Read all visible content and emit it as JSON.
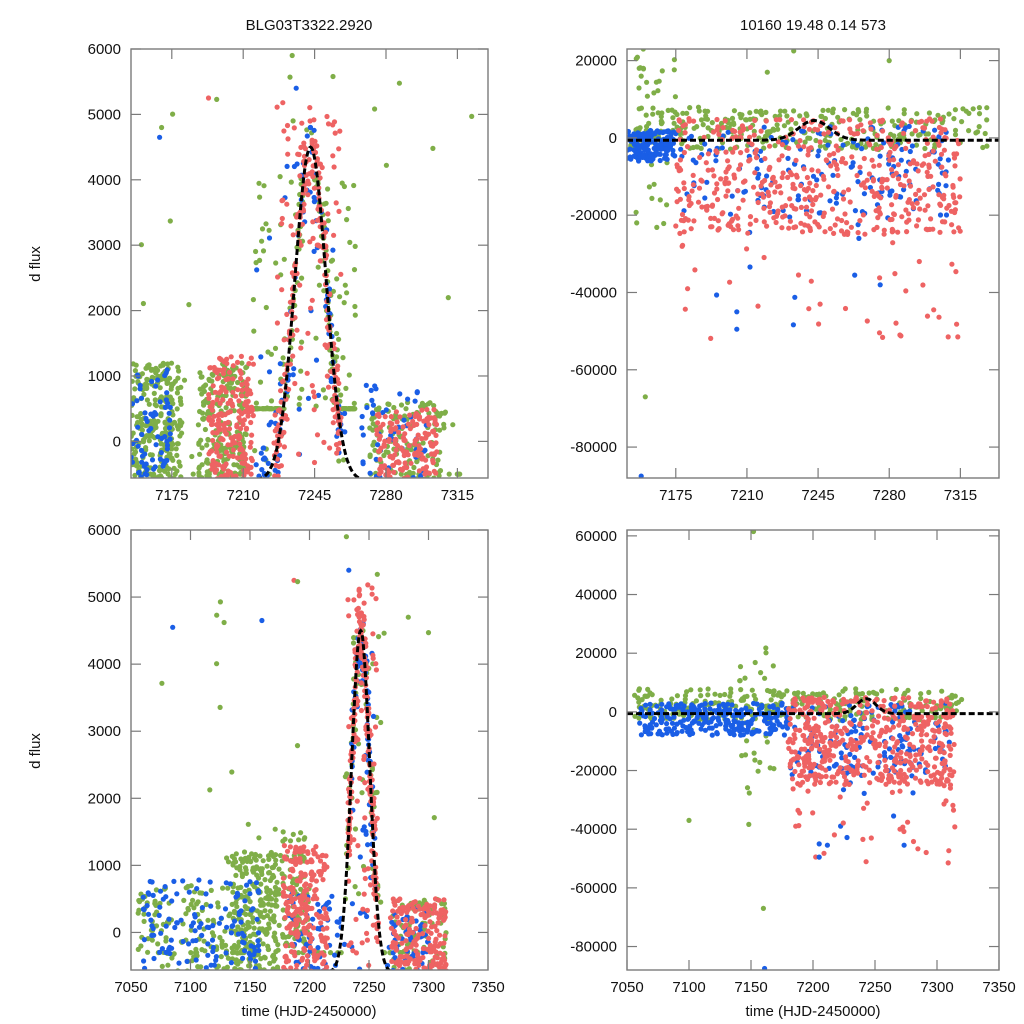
{
  "figure": {
    "title_left": "BLG03T3322.2920",
    "title_right": "10160  19.48  0.14  573",
    "ylabel": "d flux",
    "xlabel": "time (HJD-2450000)"
  },
  "colors": {
    "green": "#7fae48",
    "red": "#ee6363",
    "blue": "#1a5ee6",
    "model": "#000000",
    "frame": "#7a7a7a"
  },
  "chart_data": [
    {
      "id": "top-left",
      "type": "scatter",
      "title": "BLG03T3322.2920",
      "xlabel": "",
      "ylabel": "d flux",
      "xlim": [
        7155,
        7330
      ],
      "ylim": [
        -560,
        6000
      ],
      "xticks": [
        7175,
        7210,
        7245,
        7280,
        7315
      ],
      "yticks": [
        0,
        1000,
        2000,
        3000,
        4000,
        5000,
        6000
      ],
      "grid": false,
      "model": {
        "type": "pspl",
        "t0": 7243,
        "peak": 4500,
        "base": -600,
        "tE": 16
      },
      "series": [
        {
          "name": "green",
          "clusters": [
            {
              "t": [
                7155,
                7180
              ],
              "y": [
                -600,
                1200
              ],
              "n": 260
            },
            {
              "t": [
                7188,
                7212
              ],
              "y": [
                -600,
                1200
              ],
              "n": 200
            },
            {
              "t": [
                7215,
                7240
              ],
              "y": [
                500,
                4200
              ],
              "n": 120
            },
            {
              "t": [
                7245,
                7265
              ],
              "y": [
                500,
                4000
              ],
              "n": 120
            },
            {
              "t": [
                7270,
                7310
              ],
              "y": [
                -600,
                600
              ],
              "n": 120
            },
            {
              "t": [
                7155,
                7320
              ],
              "y": [
                -500,
                5600
              ],
              "n": 70
            }
          ]
        },
        {
          "name": "red",
          "clusters": [
            {
              "t": [
                7193,
                7215
              ],
              "y": [
                -600,
                1300
              ],
              "n": 200
            },
            {
              "t": [
                7225,
                7258
              ],
              "y": [
                -600,
                5200
              ],
              "n": 260
            },
            {
              "t": [
                7275,
                7305
              ],
              "y": [
                -600,
                500
              ],
              "n": 150
            }
          ]
        },
        {
          "name": "blue",
          "clusters": [
            {
              "t": [
                7155,
                7175
              ],
              "y": [
                -600,
                1100
              ],
              "n": 70
            },
            {
              "t": [
                7215,
                7260
              ],
              "y": [
                -600,
                4800
              ],
              "n": 120
            },
            {
              "t": [
                7268,
                7300
              ],
              "y": [
                -600,
                900
              ],
              "n": 50
            }
          ]
        }
      ]
    },
    {
      "id": "top-right",
      "type": "scatter",
      "title": "10160  19.48  0.14  573",
      "xlabel": "",
      "ylabel": "",
      "xlim": [
        7151,
        7334
      ],
      "ylim": [
        -88000,
        23000
      ],
      "xticks": [
        7175,
        7210,
        7245,
        7280,
        7315
      ],
      "yticks": [
        -80000,
        -60000,
        -40000,
        -20000,
        0,
        20000
      ],
      "grid": false,
      "model": {
        "type": "pspl",
        "t0": 7243,
        "peak": 4500,
        "base": -600,
        "tE": 16
      },
      "series": [
        {
          "name": "green",
          "clusters": [
            {
              "t": [
                7151,
                7330
              ],
              "y": [
                -3000,
                8000
              ],
              "n": 300
            },
            {
              "t": [
                7155,
                7175
              ],
              "y": [
                -30000,
                22000
              ],
              "n": 30
            }
          ]
        },
        {
          "name": "red",
          "clusters": [
            {
              "t": [
                7175,
                7315
              ],
              "y": [
                -25000,
                5000
              ],
              "n": 500
            },
            {
              "t": [
                7175,
                7315
              ],
              "y": [
                -52000,
                -20000
              ],
              "n": 40
            }
          ]
        },
        {
          "name": "blue",
          "clusters": [
            {
              "t": [
                7151,
                7175
              ],
              "y": [
                -6000,
                2000
              ],
              "n": 150
            },
            {
              "t": [
                7175,
                7310
              ],
              "y": [
                -20000,
                3000
              ],
              "n": 160
            },
            {
              "t": [
                7190,
                7300
              ],
              "y": [
                -50000,
                -20000
              ],
              "n": 10
            }
          ]
        }
      ]
    },
    {
      "id": "bottom-left",
      "type": "scatter",
      "title": "",
      "xlabel": "time (HJD-2450000)",
      "ylabel": "d flux",
      "xlim": [
        7050,
        7350
      ],
      "ylim": [
        -560,
        6000
      ],
      "xticks": [
        7050,
        7100,
        7150,
        7200,
        7250,
        7300,
        7350
      ],
      "yticks": [
        0,
        1000,
        2000,
        3000,
        4000,
        5000,
        6000
      ],
      "grid": false,
      "model": {
        "type": "pspl",
        "t0": 7243,
        "peak": 4500,
        "base": -600,
        "tE": 16
      },
      "series": [
        {
          "name": "green",
          "clusters": [
            {
              "t": [
                7055,
                7135
              ],
              "y": [
                -600,
                700
              ],
              "n": 120
            },
            {
              "t": [
                7135,
                7175
              ],
              "y": [
                -600,
                1200
              ],
              "n": 260
            },
            {
              "t": [
                7175,
                7200
              ],
              "y": [
                -200,
                1500
              ],
              "n": 90
            },
            {
              "t": [
                7230,
                7260
              ],
              "y": [
                500,
                4500
              ],
              "n": 80
            },
            {
              "t": [
                7270,
                7315
              ],
              "y": [
                -600,
                500
              ],
              "n": 80
            },
            {
              "t": [
                7070,
                7320
              ],
              "y": [
                -300,
                5600
              ],
              "n": 60
            }
          ]
        },
        {
          "name": "red",
          "clusters": [
            {
              "t": [
                7178,
                7215
              ],
              "y": [
                -600,
                1300
              ],
              "n": 220
            },
            {
              "t": [
                7232,
                7258
              ],
              "y": [
                -600,
                5200
              ],
              "n": 240
            },
            {
              "t": [
                7268,
                7315
              ],
              "y": [
                -600,
                500
              ],
              "n": 180
            }
          ]
        },
        {
          "name": "blue",
          "clusters": [
            {
              "t": [
                7060,
                7160
              ],
              "y": [
                -600,
                800
              ],
              "n": 130
            },
            {
              "t": [
                7180,
                7230
              ],
              "y": [
                -600,
                600
              ],
              "n": 60
            },
            {
              "t": [
                7235,
                7255
              ],
              "y": [
                -600,
                4600
              ],
              "n": 80
            },
            {
              "t": [
                7265,
                7300
              ],
              "y": [
                -600,
                400
              ],
              "n": 50
            }
          ]
        }
      ]
    },
    {
      "id": "bottom-right",
      "type": "scatter",
      "title": "",
      "xlabel": "time (HJD-2450000)",
      "ylabel": "",
      "xlim": [
        7050,
        7350
      ],
      "ylim": [
        -88000,
        62000
      ],
      "xticks": [
        7050,
        7100,
        7150,
        7200,
        7250,
        7300,
        7350
      ],
      "yticks": [
        -80000,
        -60000,
        -40000,
        -20000,
        0,
        20000,
        40000,
        60000
      ],
      "grid": false,
      "model": {
        "type": "pspl",
        "t0": 7243,
        "peak": 4500,
        "base": -600,
        "tE": 16
      },
      "series": [
        {
          "name": "green",
          "clusters": [
            {
              "t": [
                7055,
                7320
              ],
              "y": [
                -3000,
                8000
              ],
              "n": 300
            },
            {
              "t": [
                7140,
                7170
              ],
              "y": [
                -40000,
                22000
              ],
              "n": 30
            }
          ]
        },
        {
          "name": "red",
          "clusters": [
            {
              "t": [
                7180,
                7315
              ],
              "y": [
                -25000,
                5000
              ],
              "n": 500
            },
            {
              "t": [
                7180,
                7315
              ],
              "y": [
                -52000,
                -20000
              ],
              "n": 40
            }
          ]
        },
        {
          "name": "blue",
          "clusters": [
            {
              "t": [
                7060,
                7180
              ],
              "y": [
                -8000,
                3000
              ],
              "n": 260
            },
            {
              "t": [
                7180,
                7310
              ],
              "y": [
                -22000,
                3000
              ],
              "n": 140
            },
            {
              "t": [
                7190,
                7300
              ],
              "y": [
                -50000,
                -20000
              ],
              "n": 10
            }
          ]
        }
      ]
    }
  ],
  "notable_points": {
    "top-left": [
      {
        "s": "green",
        "t": 7234,
        "y": 5900
      },
      {
        "s": "red",
        "t": 7193,
        "y": 5250
      },
      {
        "s": "green",
        "t": 7197,
        "y": 5230
      },
      {
        "s": "green",
        "t": 7170,
        "y": 4800
      },
      {
        "s": "blue",
        "t": 7169,
        "y": 4650
      },
      {
        "s": "green",
        "t": 7322,
        "y": 4970
      },
      {
        "s": "green",
        "t": 7303,
        "y": 4480
      },
      {
        "s": "blue",
        "t": 7236,
        "y": 5400
      },
      {
        "s": "green",
        "t": 7254,
        "y": 5580
      }
    ],
    "top-right": [
      {
        "s": "green",
        "t": 7159,
        "y": 23000
      },
      {
        "s": "green",
        "t": 7157,
        "y": 18000
      },
      {
        "s": "green",
        "t": 7159,
        "y": 18000
      },
      {
        "s": "green",
        "t": 7158,
        "y": 16000
      },
      {
        "s": "green",
        "t": 7233,
        "y": 22500
      },
      {
        "s": "green",
        "t": 7280,
        "y": 20000
      },
      {
        "s": "green",
        "t": 7220,
        "y": 17000
      },
      {
        "s": "green",
        "t": 7160,
        "y": -67000
      },
      {
        "s": "blue",
        "t": 7158,
        "y": -87500
      },
      {
        "s": "blue",
        "t": 7205,
        "y": -45000
      },
      {
        "s": "blue",
        "t": 7205,
        "y": -49500
      },
      {
        "s": "blue",
        "t": 7263,
        "y": -35500
      },
      {
        "s": "red",
        "t": 7309,
        "y": -51500
      },
      {
        "s": "red",
        "t": 7246,
        "y": -43000
      }
    ],
    "bottom-left": [
      {
        "s": "green",
        "t": 7231,
        "y": 5900
      },
      {
        "s": "blue",
        "t": 7085,
        "y": 4550
      },
      {
        "s": "red",
        "t": 7187,
        "y": 5250
      },
      {
        "s": "green",
        "t": 7190,
        "y": 5230
      },
      {
        "s": "green",
        "t": 7300,
        "y": 4470
      },
      {
        "s": "green",
        "t": 7283,
        "y": 4700
      },
      {
        "s": "blue",
        "t": 7160,
        "y": 4650
      },
      {
        "s": "green",
        "t": 7122,
        "y": 4730
      },
      {
        "s": "blue",
        "t": 7233,
        "y": 5400
      }
    ],
    "bottom-right": [
      {
        "s": "green",
        "t": 7152,
        "y": 61500
      },
      {
        "s": "blue",
        "t": 7161,
        "y": -87500
      },
      {
        "s": "green",
        "t": 7160,
        "y": -67000
      },
      {
        "s": "green",
        "t": 7100,
        "y": -37000
      },
      {
        "s": "blue",
        "t": 7205,
        "y": -45000
      },
      {
        "s": "blue",
        "t": 7205,
        "y": -49500
      },
      {
        "s": "blue",
        "t": 7265,
        "y": -35500
      },
      {
        "s": "red",
        "t": 7309,
        "y": -51500
      },
      {
        "s": "red",
        "t": 7247,
        "y": -43000
      }
    ]
  }
}
